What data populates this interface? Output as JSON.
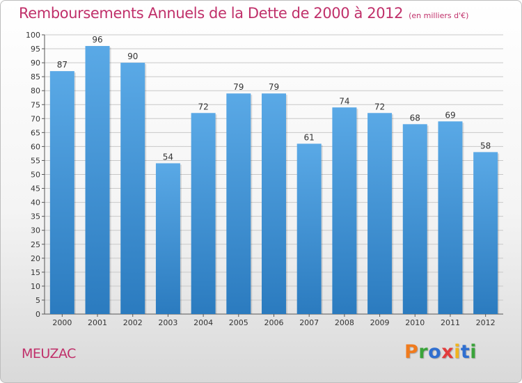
{
  "chart_data": {
    "type": "bar",
    "title": "Remboursements Annuels de la Dette de 2000 à 2012",
    "unit_label": "(en milliers d'€)",
    "categories": [
      "2000",
      "2001",
      "2002",
      "2003",
      "2004",
      "2005",
      "2006",
      "2007",
      "2008",
      "2009",
      "2010",
      "2011",
      "2012"
    ],
    "values": [
      87,
      96,
      90,
      54,
      72,
      79,
      79,
      61,
      74,
      72,
      68,
      69,
      58
    ],
    "ylim": [
      0,
      100
    ],
    "ytick_step": 5,
    "grid": true,
    "bar_color_top": "#5aa9e6",
    "bar_color_bottom": "#2b7bbf"
  },
  "footer": {
    "town": "MEUZAC",
    "logo": "Proxiti",
    "logo_colors": [
      "#f07b1e",
      "#3aa33a",
      "#2f6fd0",
      "#e23c3c",
      "#f0b41e",
      "#2f6fd0",
      "#3aa33a"
    ]
  }
}
